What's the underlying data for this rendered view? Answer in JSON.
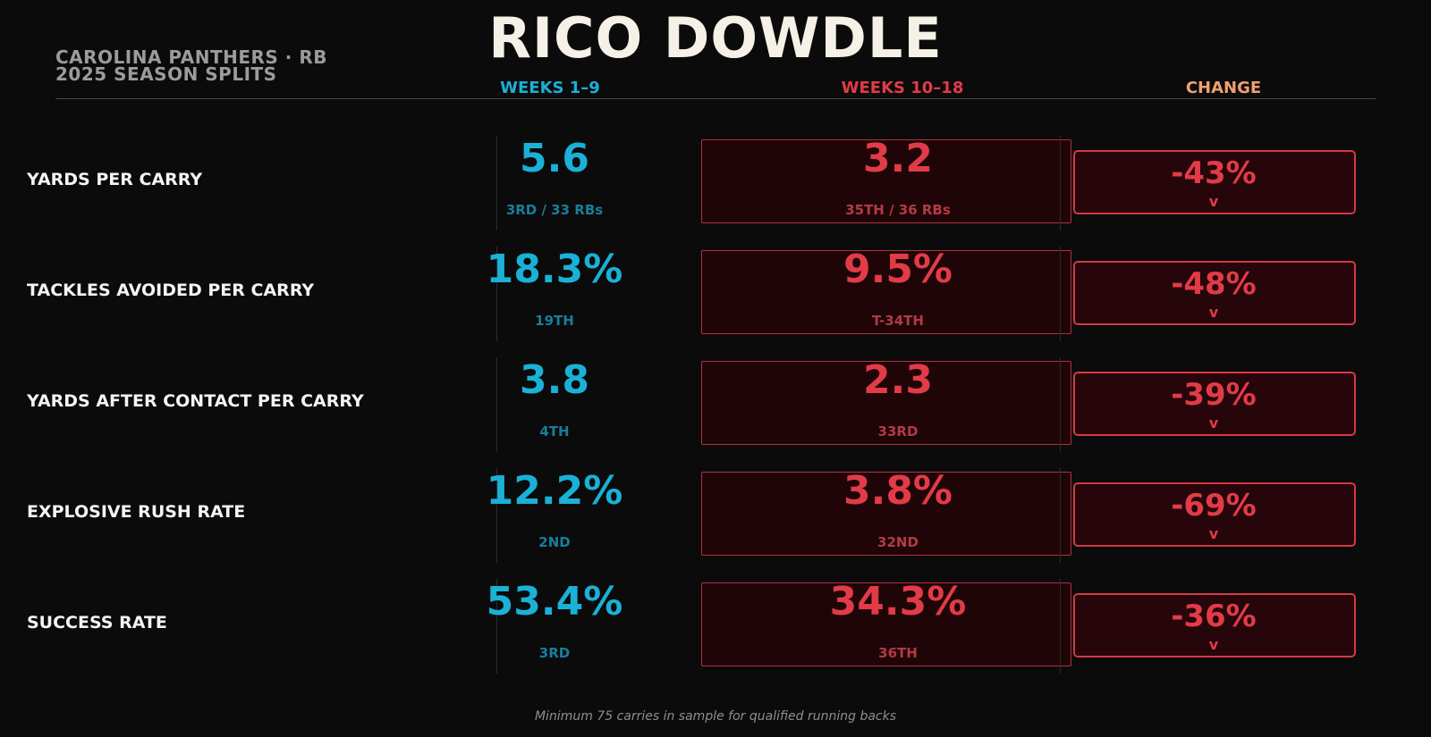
{
  "title": "RICO DOWDLE",
  "subtitle_line1": "CAROLINA PANTHERS  ·  RB",
  "subtitle_line2": "2025 SEASON SPLITS",
  "colors": {
    "background": "#0b0b0b",
    "weeks_1_9": "#1ab1d6",
    "weeks_10_18": "#e23b48",
    "change": "#f0a070"
  },
  "icons": {
    "change_arrow": "chevron-down-icon"
  },
  "chart_data": {
    "type": "table",
    "columns": [
      "WEEKS 1–9",
      "WEEKS 10–18",
      "CHANGE"
    ],
    "rows": [
      {
        "metric": "YARDS PER CARRY",
        "weeks_1_9": "5.6",
        "rank_1_9": "3RD / 33 RBs",
        "weeks_10_18": "3.2",
        "rank_10_18": "35TH / 36 RBs",
        "change": "-43%",
        "arrow": "v"
      },
      {
        "metric": "TACKLES AVOIDED PER CARRY",
        "weeks_1_9": "18.3%",
        "rank_1_9": "19TH",
        "weeks_10_18": "9.5%",
        "rank_10_18": "T-34TH",
        "change": "-48%",
        "arrow": "v"
      },
      {
        "metric": "YARDS AFTER CONTACT PER CARRY",
        "weeks_1_9": "3.8",
        "rank_1_9": "4TH",
        "weeks_10_18": "2.3",
        "rank_10_18": "33RD",
        "change": "-39%",
        "arrow": "v"
      },
      {
        "metric": "EXPLOSIVE RUSH RATE",
        "weeks_1_9": "12.2%",
        "rank_1_9": "2ND",
        "weeks_10_18": "3.8%",
        "rank_10_18": "32ND",
        "change": "-69%",
        "arrow": "v"
      },
      {
        "metric": "SUCCESS RATE",
        "weeks_1_9": "53.4%",
        "rank_1_9": "3RD",
        "weeks_10_18": "34.3%",
        "rank_10_18": "36TH",
        "change": "-36%",
        "arrow": "v"
      }
    ]
  },
  "footnote": "Minimum 75 carries in sample for qualified running backs"
}
